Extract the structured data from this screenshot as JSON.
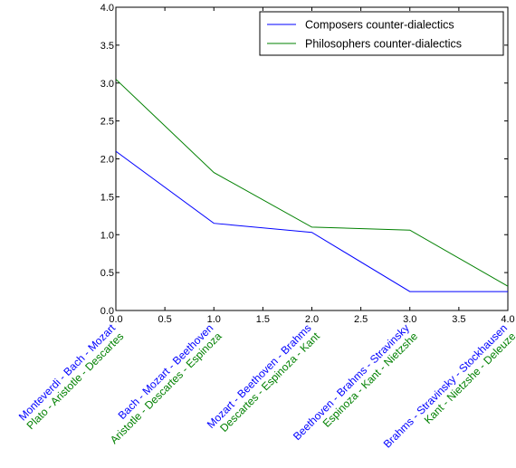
{
  "chart_data": {
    "type": "line",
    "x": [
      0,
      1,
      2,
      3,
      4
    ],
    "xlim": [
      0,
      4
    ],
    "ylim": [
      0,
      4
    ],
    "x_ticks": [
      "0.0",
      "0.5",
      "1.0",
      "1.5",
      "2.0",
      "2.5",
      "3.0",
      "3.5",
      "4.0"
    ],
    "y_ticks": [
      "0.0",
      "0.5",
      "1.0",
      "1.5",
      "2.0",
      "2.5",
      "3.0",
      "3.5",
      "4.0"
    ],
    "series": [
      {
        "name": "Composers counter-dialectics",
        "color": "#0000ff",
        "values": [
          2.1,
          1.15,
          1.03,
          0.25,
          0.25
        ]
      },
      {
        "name": "Philosophers counter-dialectics",
        "color": "#008000",
        "values": [
          3.05,
          1.82,
          1.1,
          1.06,
          0.32
        ]
      }
    ],
    "category_labels": [
      {
        "composers": "Monteverdi - Bach - Mozart",
        "philosophers": "Plato - Aristotle - Descartes"
      },
      {
        "composers": "Bach - Mozart - Beethoven",
        "philosophers": "Aristotle - Descartes - Espinoza"
      },
      {
        "composers": "Mozart - Beethoven - Brahms",
        "philosophers": "Descartes - Espinoza - Kant"
      },
      {
        "composers": "Beethoven - Brahms - Stravinsky",
        "philosophers": "Espinoza - Kant - Nietzshe"
      },
      {
        "composers": "Brahms - Stravinsky - Stockhausen",
        "philosophers": "Kant - Nietzshe - Deleuze"
      }
    ],
    "legend_position": "top-right",
    "grid": false
  }
}
